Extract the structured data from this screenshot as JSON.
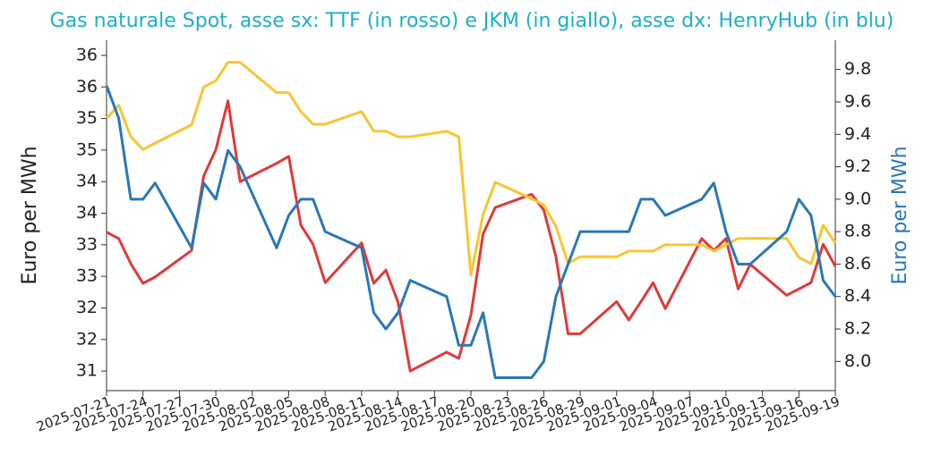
{
  "chart_data": {
    "type": "line",
    "title": "Gas naturale Spot, asse sx: TTF (in rosso) e JKM (in giallo), asse dx: HenryHub (in blu)",
    "ylabel": "Euro per MWh",
    "y2label": "Euro per MWh",
    "x": [
      "2025-07-21",
      "2025-07-22",
      "2025-07-23",
      "2025-07-24",
      "2025-07-25",
      "2025-07-28",
      "2025-07-29",
      "2025-07-30",
      "2025-07-31",
      "2025-08-01",
      "2025-08-04",
      "2025-08-05",
      "2025-08-06",
      "2025-08-07",
      "2025-08-08",
      "2025-08-11",
      "2025-08-12",
      "2025-08-13",
      "2025-08-14",
      "2025-08-15",
      "2025-08-18",
      "2025-08-19",
      "2025-08-20",
      "2025-08-21",
      "2025-08-22",
      "2025-08-25",
      "2025-08-26",
      "2025-08-27",
      "2025-08-28",
      "2025-08-29",
      "2025-09-01",
      "2025-09-02",
      "2025-09-03",
      "2025-09-04",
      "2025-09-05",
      "2025-09-08",
      "2025-09-09",
      "2025-09-10",
      "2025-09-11",
      "2025-09-12",
      "2025-09-15",
      "2025-09-16",
      "2025-09-17",
      "2025-09-18",
      "2025-09-19"
    ],
    "series": [
      {
        "name": "TTF",
        "color": "#e03a3a",
        "axis": "y",
        "values": [
          33.2,
          33.1,
          32.7,
          32.39,
          32.49,
          32.91,
          34.09,
          34.51,
          35.28,
          34.0,
          34.29,
          34.4,
          33.31,
          33.01,
          32.4,
          33.03,
          32.39,
          32.6,
          32.09,
          31.0,
          31.3,
          31.2,
          31.89,
          33.17,
          33.59,
          33.8,
          33.55,
          32.81,
          31.59,
          31.59,
          32.1,
          31.81,
          32.1,
          32.4,
          31.99,
          33.1,
          32.91,
          33.1,
          32.3,
          32.69,
          32.2,
          32.3,
          32.4,
          33.01,
          32.66
        ]
      },
      {
        "name": "JKM",
        "color": "#f8c631",
        "axis": "y",
        "values": [
          35.0,
          35.21,
          34.71,
          34.51,
          34.61,
          34.9,
          35.5,
          35.6,
          35.89,
          35.89,
          35.41,
          35.41,
          35.11,
          34.91,
          34.91,
          35.11,
          34.8,
          34.8,
          34.71,
          34.71,
          34.8,
          34.71,
          32.52,
          33.48,
          33.99,
          33.73,
          33.63,
          33.29,
          32.71,
          32.81,
          32.81,
          32.9,
          32.9,
          32.9,
          33.0,
          33.0,
          32.9,
          33.0,
          33.1,
          33.1,
          33.1,
          32.8,
          32.7,
          33.31,
          33.03
        ]
      },
      {
        "name": "HenryHub",
        "color": "#2a78b4",
        "axis": "y2",
        "values": [
          9.7,
          9.5,
          9.0,
          9.0,
          9.1,
          8.7,
          9.1,
          9.0,
          9.3,
          9.2,
          8.7,
          8.9,
          9.0,
          9.0,
          8.8,
          8.7,
          8.3,
          8.2,
          8.3,
          8.5,
          8.4,
          8.1,
          8.1,
          8.3,
          7.9,
          7.9,
          8.0,
          8.4,
          8.6,
          8.8,
          8.8,
          8.8,
          9.0,
          9.0,
          8.9,
          9.0,
          9.1,
          8.8,
          8.6,
          8.6,
          8.8,
          9.0,
          8.9,
          8.5,
          8.4
        ]
      }
    ],
    "xlim": [
      "2025-07-21",
      "2025-09-19"
    ],
    "xticks": [
      "2025-07-21",
      "2025-07-24",
      "2025-07-27",
      "2025-07-30",
      "2025-08-02",
      "2025-08-05",
      "2025-08-08",
      "2025-08-11",
      "2025-08-14",
      "2025-08-17",
      "2025-08-20",
      "2025-08-23",
      "2025-08-26",
      "2025-08-29",
      "2025-09-01",
      "2025-09-04",
      "2025-09-07",
      "2025-09-10",
      "2025-09-13",
      "2025-09-16",
      "2025-09-19"
    ],
    "ylim": [
      30.69,
      36.24
    ],
    "yticks": [
      31,
      {
        "value": 31.5,
        "label": "32"
      },
      32,
      {
        "value": 32.5,
        "label": "33"
      },
      33,
      {
        "value": 33.5,
        "label": "34"
      },
      34,
      {
        "value": 34.5,
        "label": "35"
      },
      35,
      {
        "value": 35.5,
        "label": "36"
      },
      36
    ],
    "y2lim": [
      7.82,
      9.98
    ],
    "y2ticks": [
      {
        "value": 8,
        "label": "8.0"
      },
      8.2,
      8.4,
      8.6,
      8.8,
      {
        "value": 9,
        "label": "9.0"
      },
      9.2,
      9.4,
      9.6,
      9.8
    ],
    "title_color": "#1cb0c6",
    "y2label_color": "#2a78b4"
  }
}
